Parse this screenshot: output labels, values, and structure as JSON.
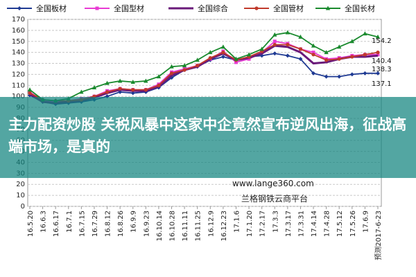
{
  "chart_data": {
    "type": "line",
    "legend_position": "top",
    "grid": true,
    "ylim": [
      0,
      170
    ],
    "yticks": [
      0,
      10,
      20,
      30,
      40,
      50,
      60,
      70,
      80,
      90,
      100,
      110,
      120,
      130,
      140,
      150,
      160,
      170
    ],
    "x": [
      "16.5.20",
      "16.6.3",
      "16.6.17",
      "16.7.1",
      "16.7.15",
      "16.7.29",
      "16.8.12",
      "16.8.26",
      "16.9.9",
      "16.9.23",
      "16.10.14",
      "16.10.28",
      "16.11.11",
      "16.11.25",
      "16.12.9",
      "16.12.23",
      "17.1.6",
      "17.1.20",
      "17.2.17",
      "17.3.3",
      "17.3.17",
      "17.3.31",
      "17.4.14",
      "17.4.28",
      "17.5.12",
      "17.5.26",
      "17.6.9",
      "预测2017-6-23"
    ],
    "series": [
      {
        "name": "全国板材",
        "color": "#1f3a93",
        "marker": "diamond",
        "values": [
          101,
          95,
          93,
          94,
          95,
          97,
          100,
          104,
          103,
          104,
          108,
          117,
          124,
          127,
          133,
          136,
          133,
          136,
          137,
          139,
          137,
          134,
          121,
          118,
          118,
          120,
          121,
          121
        ]
      },
      {
        "name": "全国型材",
        "color": "#e83ad3",
        "marker": "square",
        "values": [
          104,
          96,
          95,
          96,
          98,
          100,
          105,
          107,
          106,
          106,
          111,
          122,
          125,
          128,
          134,
          141,
          131,
          134,
          140,
          150,
          148,
          143,
          140,
          134,
          135,
          137,
          138,
          138
        ]
      },
      {
        "name": "全国综合",
        "color": "#6a1a7a",
        "marker": "line",
        "values": [
          102,
          95,
          94,
          95,
          96,
          99,
          103,
          106,
          105,
          105,
          109,
          119,
          124,
          127,
          134,
          139,
          133,
          135,
          139,
          146,
          145,
          140,
          130,
          131,
          134,
          136,
          136,
          137
        ]
      },
      {
        "name": "全国管材",
        "color": "#c0392b",
        "marker": "circle",
        "values": [
          103,
          97,
          96,
          96,
          97,
          100,
          104,
          107,
          106,
          106,
          110,
          121,
          124,
          128,
          135,
          140,
          133,
          136,
          141,
          147,
          147,
          143,
          138,
          133,
          134,
          136,
          138,
          140
        ]
      },
      {
        "name": "全国长材",
        "color": "#1a8a2e",
        "marker": "triangle",
        "values": [
          106,
          97,
          96,
          98,
          104,
          108,
          112,
          114,
          113,
          114,
          118,
          127,
          128,
          133,
          140,
          145,
          134,
          138,
          143,
          156,
          158,
          154,
          146,
          140,
          145,
          150,
          157,
          154
        ]
      }
    ],
    "end_labels": [
      "154.2",
      "140.4",
      "138.3",
      "137.1"
    ]
  },
  "banner": {
    "text": "主力配资炒股 关税风暴中这家中企竟然宣布逆风出海，征战高端市场，是真的"
  },
  "watermark": {
    "url": "www.lange360.com",
    "platform": "兰格钢铁云商平台"
  }
}
